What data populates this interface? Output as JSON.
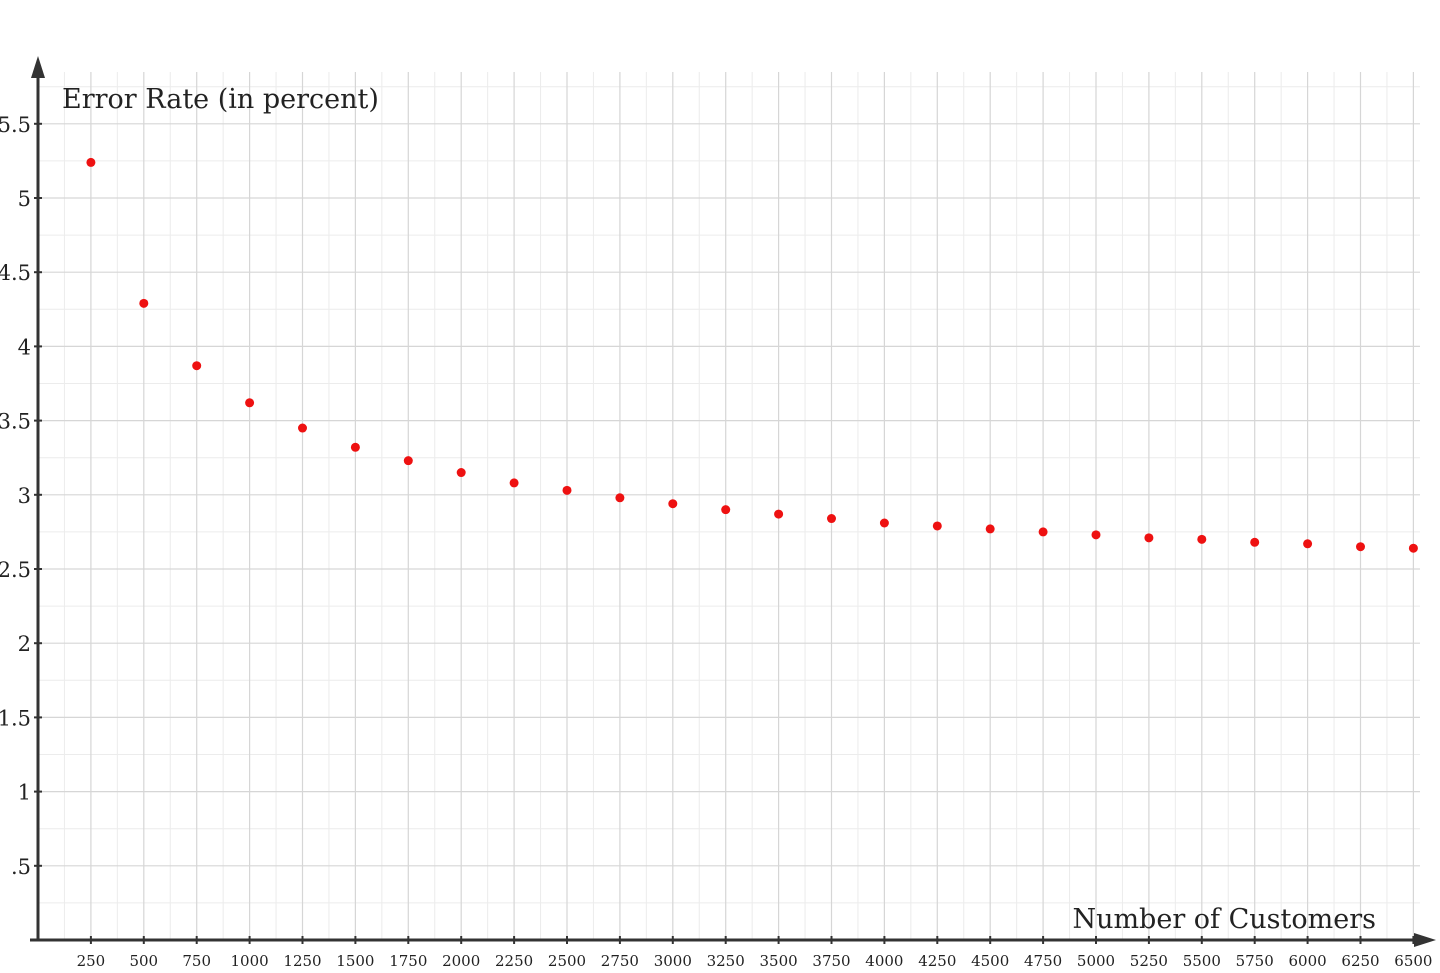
{
  "chart_data": {
    "type": "scatter",
    "title": "",
    "xlabel": "Number of Customers",
    "ylabel": "Error Rate (in percent)",
    "xlim": [
      0,
      6500
    ],
    "ylim": [
      0,
      5.5
    ],
    "grid": true,
    "point_color": "#ee1111",
    "x_ticks": [
      250,
      500,
      750,
      1000,
      1250,
      1500,
      1750,
      2000,
      2250,
      2500,
      2750,
      3000,
      3250,
      3500,
      3750,
      4000,
      4250,
      4500,
      4750,
      5000,
      5250,
      5500,
      5750,
      6000,
      6250,
      6500
    ],
    "x_tick_labels": [
      "250",
      "500",
      "750",
      "1000",
      "1250",
      "1500",
      "1750",
      "2000",
      "2250",
      "2500",
      "2750",
      "3000",
      "3250",
      "3500",
      "3750",
      "4000",
      "4250",
      "4500",
      "4750",
      "5000",
      "5250",
      "5500",
      "5750",
      "6000",
      "6250",
      "6500"
    ],
    "y_ticks": [
      0.5,
      1,
      1.5,
      2,
      2.5,
      3,
      3.5,
      4,
      4.5,
      5,
      5.5
    ],
    "y_tick_labels": [
      ".5",
      "1",
      "1.5",
      "2",
      "2.5",
      "3",
      "3.5",
      "4",
      "4.5",
      "5",
      "5.5"
    ],
    "series": [
      {
        "x": [
          250,
          500,
          750,
          1000,
          1250,
          1500,
          1750,
          2000,
          2250,
          2500,
          2750,
          3000,
          3250,
          3500,
          3750,
          4000,
          4250,
          4500,
          4750,
          5000,
          5250,
          5500,
          5750,
          6000,
          6250,
          6500
        ],
        "y": [
          5.24,
          4.29,
          3.87,
          3.62,
          3.45,
          3.32,
          3.23,
          3.15,
          3.08,
          3.03,
          2.98,
          2.94,
          2.9,
          2.87,
          2.84,
          2.81,
          2.79,
          2.77,
          2.75,
          2.73,
          2.71,
          2.7,
          2.68,
          2.67,
          2.65,
          2.64
        ]
      }
    ]
  }
}
